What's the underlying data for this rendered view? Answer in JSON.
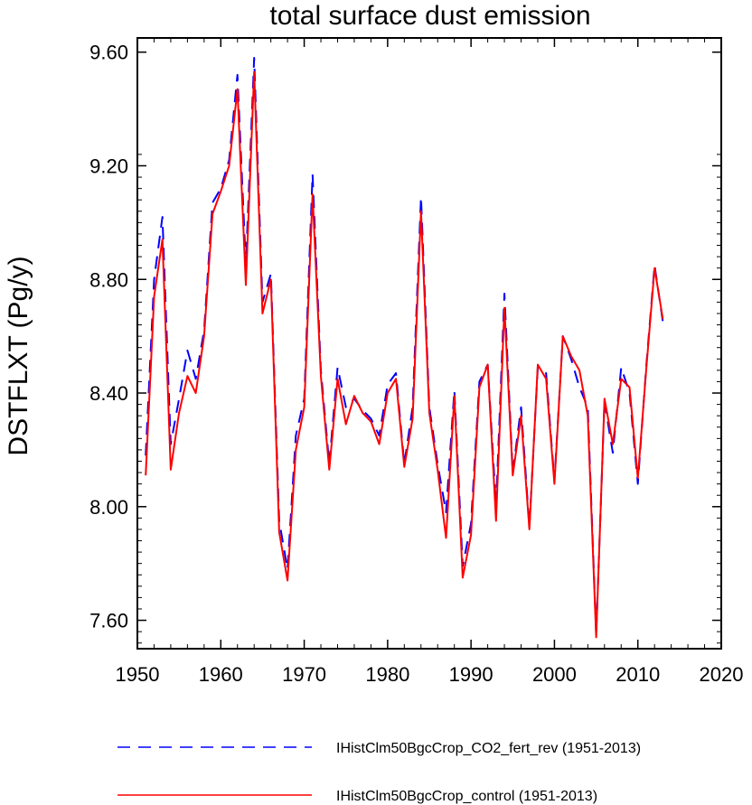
{
  "chart_data": {
    "type": "line",
    "title": "total surface dust emission",
    "xlabel": "",
    "ylabel": "DSTFLXT  (Pg/y)",
    "xlim": [
      1950,
      2020
    ],
    "ylim": [
      7.5,
      9.65
    ],
    "xticks": [
      "1950",
      "1960",
      "1970",
      "1980",
      "1990",
      "2000",
      "2010",
      "2020"
    ],
    "yticks": [
      "7.60",
      "8.00",
      "8.40",
      "8.80",
      "9.20",
      "9.60"
    ],
    "grid": false,
    "legend": "bottom",
    "x": [
      1951,
      1952,
      1953,
      1954,
      1955,
      1956,
      1957,
      1958,
      1959,
      1960,
      1961,
      1962,
      1963,
      1964,
      1965,
      1966,
      1967,
      1968,
      1969,
      1970,
      1971,
      1972,
      1973,
      1974,
      1975,
      1976,
      1977,
      1978,
      1979,
      1980,
      1981,
      1982,
      1983,
      1984,
      1985,
      1986,
      1987,
      1988,
      1989,
      1990,
      1991,
      1992,
      1993,
      1994,
      1995,
      1996,
      1997,
      1998,
      1999,
      2000,
      2001,
      2002,
      2003,
      2004,
      2005,
      2006,
      2007,
      2008,
      2009,
      2010,
      2011,
      2012,
      2013
    ],
    "series": [
      {
        "name": "IHistClm50BgcCrop_CO2_fert_rev (1951-2013)",
        "color": "#0000ff",
        "style": "dashed",
        "values": [
          8.18,
          8.8,
          9.02,
          8.22,
          8.38,
          8.55,
          8.45,
          8.62,
          9.07,
          9.12,
          9.22,
          9.52,
          8.85,
          9.58,
          8.72,
          8.82,
          7.95,
          7.78,
          8.25,
          8.38,
          9.17,
          8.48,
          8.15,
          8.49,
          8.35,
          8.38,
          8.34,
          8.31,
          8.25,
          8.43,
          8.47,
          8.15,
          8.35,
          9.09,
          8.35,
          8.15,
          7.98,
          8.41,
          7.79,
          7.94,
          8.44,
          8.5,
          8.0,
          8.75,
          8.12,
          8.35,
          7.93,
          8.49,
          8.47,
          8.09,
          8.6,
          8.52,
          8.42,
          8.35,
          7.55,
          8.37,
          8.19,
          8.49,
          8.4,
          8.08,
          8.49,
          8.85,
          8.65
        ]
      },
      {
        "name": "IHistClm50BgcCrop_control (1951-2013)",
        "color": "#ff0000",
        "style": "solid",
        "values": [
          8.11,
          8.74,
          8.94,
          8.13,
          8.33,
          8.46,
          8.4,
          8.6,
          9.03,
          9.11,
          9.2,
          9.47,
          8.78,
          9.53,
          8.68,
          8.8,
          7.91,
          7.74,
          8.2,
          8.35,
          9.1,
          8.46,
          8.13,
          8.45,
          8.29,
          8.39,
          8.33,
          8.3,
          8.22,
          8.4,
          8.45,
          8.14,
          8.31,
          9.04,
          8.33,
          8.13,
          7.89,
          8.39,
          7.75,
          7.9,
          8.42,
          8.5,
          7.95,
          8.7,
          8.11,
          8.32,
          7.92,
          8.5,
          8.45,
          8.08,
          8.6,
          8.53,
          8.48,
          8.32,
          7.54,
          8.38,
          8.22,
          8.45,
          8.42,
          8.1,
          8.48,
          8.84,
          8.66
        ]
      }
    ]
  }
}
